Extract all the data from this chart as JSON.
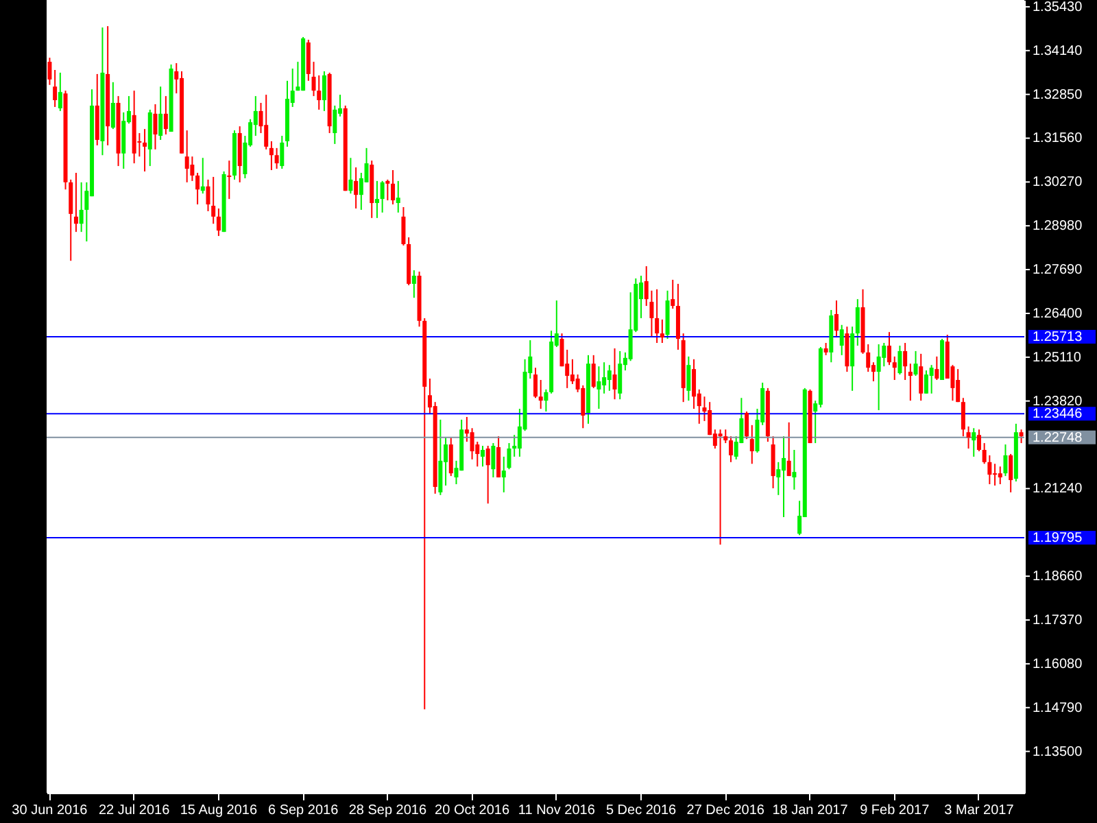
{
  "chart_data": {
    "type": "candlestick",
    "categories": [
      "30 Jun 2016",
      null,
      null,
      null,
      null,
      null,
      null,
      null,
      null,
      null,
      null,
      null,
      null,
      null,
      null,
      null,
      "22 Jul 2016",
      null,
      null,
      null,
      null,
      null,
      null,
      null,
      null,
      null,
      null,
      null,
      null,
      null,
      null,
      null,
      "15 Aug 2016",
      null,
      null,
      null,
      null,
      null,
      null,
      null,
      null,
      null,
      null,
      null,
      null,
      null,
      null,
      null,
      "6 Sep 2016",
      null,
      null,
      null,
      null,
      null,
      null,
      null,
      null,
      null,
      null,
      null,
      null,
      null,
      null,
      null,
      "28 Sep 2016",
      null,
      null,
      null,
      null,
      null,
      null,
      null,
      null,
      null,
      null,
      null,
      null,
      null,
      null,
      null,
      "20 Oct 2016",
      null,
      null,
      null,
      null,
      null,
      null,
      null,
      null,
      null,
      null,
      null,
      null,
      null,
      null,
      null,
      "11 Nov 2016",
      null,
      null,
      null,
      null,
      null,
      null,
      null,
      null,
      null,
      null,
      null,
      null,
      null,
      null,
      null,
      "5 Dec 2016",
      null,
      null,
      null,
      null,
      null,
      null,
      null,
      null,
      null,
      null,
      null,
      null,
      null,
      null,
      null,
      "27 Dec 2016",
      null,
      null,
      null,
      null,
      null,
      null,
      null,
      null,
      null,
      null,
      null,
      null,
      null,
      null,
      null,
      "18 Jan 2017",
      null,
      null,
      null,
      null,
      null,
      null,
      null,
      null,
      null,
      null,
      null,
      null,
      null,
      null,
      null,
      "9 Feb 2017",
      null,
      null,
      null,
      null,
      null,
      null,
      null,
      null,
      null,
      null,
      null,
      null,
      null,
      null,
      null,
      "3 Mar 2017",
      null,
      null,
      null,
      null,
      null,
      null,
      null,
      null
    ],
    "ohlc": [
      [
        1.3381,
        1.3393,
        1.3313,
        1.3329
      ],
      [
        1.3308,
        1.3357,
        1.3248,
        1.3268
      ],
      [
        1.3244,
        1.3349,
        1.3236,
        1.3292
      ],
      [
        1.3288,
        1.3296,
        1.3005,
        1.3026
      ],
      [
        1.3026,
        1.3034,
        1.2795,
        1.2933
      ],
      [
        1.2925,
        1.3054,
        1.288,
        1.2904
      ],
      [
        1.2904,
        1.3026,
        1.288,
        1.2945
      ],
      [
        1.2945,
        1.3026,
        1.2852,
        1.3001
      ],
      [
        1.2985,
        1.33,
        1.2985,
        1.3252
      ],
      [
        1.3252,
        1.3345,
        1.3135,
        1.3151
      ],
      [
        1.3147,
        1.3482,
        1.3106,
        1.3349
      ],
      [
        1.3345,
        1.3486,
        1.3135,
        1.3191
      ],
      [
        1.3187,
        1.3321,
        1.3183,
        1.326
      ],
      [
        1.326,
        1.328,
        1.3074,
        1.3111
      ],
      [
        1.3111,
        1.3232,
        1.3066,
        1.3207
      ],
      [
        1.3203,
        1.328,
        1.3199,
        1.3236
      ],
      [
        1.3224,
        1.3296,
        1.3082,
        1.3111
      ],
      [
        1.3147,
        1.3171,
        1.3102,
        1.3143
      ],
      [
        1.3143,
        1.3183,
        1.3058,
        1.3131
      ],
      [
        1.3123,
        1.324,
        1.3074,
        1.3232
      ],
      [
        1.3228,
        1.3256,
        1.3123,
        1.3167
      ],
      [
        1.3163,
        1.3308,
        1.3151,
        1.3228
      ],
      [
        1.3228,
        1.328,
        1.3167,
        1.3183
      ],
      [
        1.3175,
        1.3373,
        1.3175,
        1.3361
      ],
      [
        1.3353,
        1.3377,
        1.3288,
        1.3329
      ],
      [
        1.3333,
        1.3353,
        1.3111,
        1.3111
      ],
      [
        1.3102,
        1.3179,
        1.3026,
        1.3066
      ],
      [
        1.3078,
        1.3102,
        1.303,
        1.3046
      ],
      [
        1.3046,
        1.3054,
        1.2961,
        1.3005
      ],
      [
        1.3001,
        1.3098,
        1.2993,
        1.3014
      ],
      [
        1.3014,
        1.3034,
        1.2941,
        1.2961
      ],
      [
        1.2957,
        1.3042,
        1.2904,
        1.2925
      ],
      [
        1.2925,
        1.2949,
        1.2868,
        1.2884
      ],
      [
        1.288,
        1.3058,
        1.288,
        1.305
      ],
      [
        1.3046,
        1.309,
        1.2977,
        1.3042
      ],
      [
        1.3046,
        1.3179,
        1.3034,
        1.3171
      ],
      [
        1.3171,
        1.3191,
        1.3026,
        1.3074
      ],
      [
        1.305,
        1.3163,
        1.3038,
        1.3143
      ],
      [
        1.3135,
        1.3212,
        1.3131,
        1.3203
      ],
      [
        1.3195,
        1.328,
        1.3163,
        1.3236
      ],
      [
        1.3236,
        1.326,
        1.3171,
        1.3191
      ],
      [
        1.3195,
        1.3284,
        1.3123,
        1.3131
      ],
      [
        1.3127,
        1.3147,
        1.3062,
        1.3106
      ],
      [
        1.3106,
        1.3127,
        1.3066,
        1.3082
      ],
      [
        1.3074,
        1.3163,
        1.3066,
        1.3143
      ],
      [
        1.3147,
        1.3325,
        1.3131,
        1.3272
      ],
      [
        1.326,
        1.3361,
        1.3248,
        1.3296
      ],
      [
        1.3296,
        1.3381,
        1.3296,
        1.3308
      ],
      [
        1.3296,
        1.3454,
        1.3296,
        1.345
      ],
      [
        1.3438,
        1.3446,
        1.3325,
        1.3345
      ],
      [
        1.3337,
        1.3381,
        1.328,
        1.3296
      ],
      [
        1.3296,
        1.3341,
        1.324,
        1.3268
      ],
      [
        1.3268,
        1.3353,
        1.3236,
        1.3341
      ],
      [
        1.3345,
        1.3349,
        1.3171,
        1.3191
      ],
      [
        1.3171,
        1.3252,
        1.3139,
        1.324
      ],
      [
        1.3228,
        1.3284,
        1.322,
        1.3244
      ],
      [
        1.3244,
        1.3252,
        1.3001,
        1.3001
      ],
      [
        1.3001,
        1.3098,
        1.2993,
        1.3034
      ],
      [
        1.303,
        1.307,
        1.2949,
        1.2989
      ],
      [
        1.2989,
        1.3054,
        1.2945,
        1.3038
      ],
      [
        1.3026,
        1.3127,
        1.3026,
        1.3082
      ],
      [
        1.3078,
        1.309,
        1.2921,
        1.2965
      ],
      [
        1.2965,
        1.303,
        1.2921,
        1.2977
      ],
      [
        1.2977,
        1.303,
        1.2937,
        1.3026
      ],
      [
        1.303,
        1.3034,
        1.2973,
        1.3022
      ],
      [
        1.3022,
        1.3062,
        1.2961,
        1.2973
      ],
      [
        1.2965,
        1.303,
        1.2937,
        1.2981
      ],
      [
        1.2925,
        1.2953,
        1.284,
        1.2844
      ],
      [
        1.2844,
        1.2864,
        1.2723,
        1.2727
      ],
      [
        1.2727,
        1.2767,
        1.2686,
        1.2751
      ],
      [
        1.2751,
        1.2763,
        1.2601,
        1.2618
      ],
      [
        1.2618,
        1.2626,
        1.1474,
        1.2424
      ],
      [
        1.2399,
        1.2448,
        1.2343,
        1.2363
      ],
      [
        1.2367,
        1.2379,
        1.2109,
        1.2129
      ],
      [
        1.2113,
        1.2327,
        1.2105,
        1.2206
      ],
      [
        1.2202,
        1.2274,
        1.2133,
        1.2254
      ],
      [
        1.2254,
        1.2274,
        1.2161,
        1.2169
      ],
      [
        1.2157,
        1.2206,
        1.2137,
        1.2185
      ],
      [
        1.2177,
        1.2327,
        1.2177,
        1.2298
      ],
      [
        1.2298,
        1.2335,
        1.2262,
        1.2286
      ],
      [
        1.229,
        1.2302,
        1.221,
        1.2234
      ],
      [
        1.2254,
        1.2262,
        1.2189,
        1.2226
      ],
      [
        1.2218,
        1.225,
        1.2189,
        1.2238
      ],
      [
        1.2242,
        1.225,
        1.208,
        1.2193
      ],
      [
        1.2181,
        1.2258,
        1.2157,
        1.225
      ],
      [
        1.2246,
        1.2278,
        1.2157,
        1.2157
      ],
      [
        1.2157,
        1.2218,
        1.2113,
        1.2177
      ],
      [
        1.2185,
        1.2258,
        1.2181,
        1.2242
      ],
      [
        1.2242,
        1.2282,
        1.2218,
        1.225
      ],
      [
        1.2242,
        1.2359,
        1.2218,
        1.2307
      ],
      [
        1.2298,
        1.2505,
        1.2294,
        1.2468
      ],
      [
        1.2464,
        1.2561,
        1.2448,
        1.2513
      ],
      [
        1.246,
        1.248,
        1.2391,
        1.2395
      ],
      [
        1.2395,
        1.2444,
        1.2359,
        1.2383
      ],
      [
        1.2383,
        1.2416,
        1.2351,
        1.2408
      ],
      [
        1.2408,
        1.2589,
        1.2404,
        1.2557
      ],
      [
        1.2545,
        1.2678,
        1.2541,
        1.2581
      ],
      [
        1.2565,
        1.2581,
        1.2484,
        1.2484
      ],
      [
        1.2492,
        1.2533,
        1.242,
        1.2456
      ],
      [
        1.246,
        1.2505,
        1.2432,
        1.244
      ],
      [
        1.2448,
        1.246,
        1.2408,
        1.2416
      ],
      [
        1.242,
        1.2428,
        1.2302,
        1.2339
      ],
      [
        1.2347,
        1.2517,
        1.2315,
        1.2492
      ],
      [
        1.2492,
        1.2517,
        1.242,
        1.2424
      ],
      [
        1.2416,
        1.2484,
        1.2359,
        1.244
      ],
      [
        1.2428,
        1.2496,
        1.2404,
        1.2452
      ],
      [
        1.2444,
        1.2488,
        1.2412,
        1.2472
      ],
      [
        1.246,
        1.2537,
        1.2387,
        1.2416
      ],
      [
        1.2404,
        1.2529,
        1.2387,
        1.2492
      ],
      [
        1.2488,
        1.2525,
        1.2472,
        1.2509
      ],
      [
        1.2505,
        1.2702,
        1.25,
        1.2593
      ],
      [
        1.2589,
        1.2743,
        1.2585,
        1.2727
      ],
      [
        1.2682,
        1.2751,
        1.2626,
        1.2731
      ],
      [
        1.2735,
        1.2779,
        1.2662,
        1.2682
      ],
      [
        1.2674,
        1.2707,
        1.2573,
        1.2626
      ],
      [
        1.2626,
        1.2711,
        1.2553,
        1.2581
      ],
      [
        1.2581,
        1.2622,
        1.2553,
        1.2569
      ],
      [
        1.2577,
        1.2707,
        1.2565,
        1.2678
      ],
      [
        1.2682,
        1.2739,
        1.2654,
        1.2662
      ],
      [
        1.2662,
        1.2727,
        1.2533,
        1.2565
      ],
      [
        1.2561,
        1.2581,
        1.2379,
        1.242
      ],
      [
        1.2412,
        1.2513,
        1.2383,
        1.2488
      ],
      [
        1.2476,
        1.2505,
        1.2359,
        1.2395
      ],
      [
        1.2404,
        1.2416,
        1.2315,
        1.2367
      ],
      [
        1.2363,
        1.2395,
        1.2323,
        1.2351
      ],
      [
        1.2355,
        1.2379,
        1.2282,
        1.2282
      ],
      [
        1.2286,
        1.2298,
        1.2242,
        1.225
      ],
      [
        1.2286,
        1.2298,
        1.1959,
        1.2278
      ],
      [
        1.2278,
        1.2298,
        1.2258,
        1.2266
      ],
      [
        1.2266,
        1.2278,
        1.2202,
        1.2222
      ],
      [
        1.2218,
        1.2278,
        1.221,
        1.2262
      ],
      [
        1.2258,
        1.2391,
        1.2258,
        1.2331
      ],
      [
        1.2347,
        1.2351,
        1.227,
        1.2278
      ],
      [
        1.227,
        1.2311,
        1.2197,
        1.2234
      ],
      [
        1.2234,
        1.2359,
        1.223,
        1.2327
      ],
      [
        1.2319,
        1.2436,
        1.2311,
        1.242
      ],
      [
        1.2412,
        1.242,
        1.2262,
        1.2278
      ],
      [
        1.2254,
        1.2278,
        1.2125,
        1.2161
      ],
      [
        1.2157,
        1.2202,
        1.2105,
        1.2181
      ],
      [
        1.2177,
        1.2278,
        1.204,
        1.2214
      ],
      [
        1.2206,
        1.2319,
        1.2161,
        1.2161
      ],
      [
        1.2157,
        1.2238,
        1.2121,
        1.2173
      ],
      [
        1.1991,
        1.2088,
        1.1987,
        1.2044
      ],
      [
        1.204,
        1.242,
        1.204,
        1.2416
      ],
      [
        1.2412,
        1.2416,
        1.2258,
        1.2258
      ],
      [
        1.2351,
        1.2383,
        1.2258,
        1.2375
      ],
      [
        1.2371,
        1.2541,
        1.2363,
        1.2537
      ],
      [
        1.2537,
        1.2553,
        1.2517,
        1.2525
      ],
      [
        1.2525,
        1.265,
        1.2496,
        1.2634
      ],
      [
        1.2638,
        1.2678,
        1.2573,
        1.2589
      ],
      [
        1.2545,
        1.2606,
        1.2517,
        1.2593
      ],
      [
        1.2581,
        1.2601,
        1.2468,
        1.2484
      ],
      [
        1.2484,
        1.2601,
        1.2412,
        1.2581
      ],
      [
        1.2581,
        1.2682,
        1.2545,
        1.2658
      ],
      [
        1.2658,
        1.2711,
        1.2521,
        1.2525
      ],
      [
        1.2525,
        1.2549,
        1.2468,
        1.248
      ],
      [
        1.2488,
        1.2496,
        1.244,
        1.2468
      ],
      [
        1.2468,
        1.2549,
        1.2355,
        1.2513
      ],
      [
        1.2509,
        1.2553,
        1.2484,
        1.2545
      ],
      [
        1.2545,
        1.2585,
        1.2488,
        1.2496
      ],
      [
        1.2496,
        1.2513,
        1.2444,
        1.248
      ],
      [
        1.2464,
        1.2545,
        1.246,
        1.2529
      ],
      [
        1.2529,
        1.2553,
        1.2444,
        1.2484
      ],
      [
        1.2468,
        1.2492,
        1.2383,
        1.2456
      ],
      [
        1.246,
        1.2529,
        1.2456,
        1.2492
      ],
      [
        1.2484,
        1.2521,
        1.2383,
        1.2404
      ],
      [
        1.2404,
        1.2472,
        1.2404,
        1.246
      ],
      [
        1.2456,
        1.2488,
        1.2404,
        1.248
      ],
      [
        1.2476,
        1.2513,
        1.2444,
        1.2448
      ],
      [
        1.2444,
        1.2565,
        1.2444,
        1.2561
      ],
      [
        1.2557,
        1.2577,
        1.2448,
        1.2448
      ],
      [
        1.2484,
        1.2488,
        1.2383,
        1.242
      ],
      [
        1.2444,
        1.2476,
        1.2379,
        1.2379
      ],
      [
        1.2379,
        1.2391,
        1.2278,
        1.2298
      ],
      [
        1.229,
        1.2307,
        1.2242,
        1.2274
      ],
      [
        1.2266,
        1.2302,
        1.2218,
        1.229
      ],
      [
        1.2282,
        1.2298,
        1.2234,
        1.2238
      ],
      [
        1.2238,
        1.2258,
        1.2197,
        1.2202
      ],
      [
        1.2202,
        1.2222,
        1.2137,
        1.2165
      ],
      [
        1.2169,
        1.2197,
        1.2133,
        1.2165
      ],
      [
        1.2169,
        1.2189,
        1.2137,
        1.2157
      ],
      [
        1.2169,
        1.2254,
        1.2161,
        1.2222
      ],
      [
        1.2222,
        1.2226,
        1.2113,
        1.2149
      ],
      [
        1.2153,
        1.2315,
        1.2145,
        1.229
      ],
      [
        1.229,
        1.2298,
        1.2258,
        1.2278
      ]
    ],
    "colors": [
      "#ff0000",
      "#ff0000",
      "#00ee00",
      "#ff0000",
      "#ff0000",
      "#ff0000",
      "#00ee00",
      "#00ee00",
      "#00ee00",
      "#ff0000",
      "#00ee00",
      "#ff0000",
      "#00ee00",
      "#ff0000",
      "#00ee00",
      "#00ee00",
      "#ff0000",
      "#ff0000",
      "#ff0000",
      "#00ee00",
      "#ff0000",
      "#00ee00",
      "#ff0000",
      "#00ee00",
      "#ff0000",
      "#ff0000",
      "#ff0000",
      "#ff0000",
      "#ff0000",
      "#00ee00",
      "#ff0000",
      "#ff0000",
      "#ff0000",
      "#00ee00",
      "#ff0000",
      "#00ee00",
      "#ff0000",
      "#00ee00",
      "#00ee00",
      "#00ee00",
      "#ff0000",
      "#ff0000",
      "#ff0000",
      "#ff0000",
      "#00ee00",
      "#00ee00",
      "#00ee00",
      "#00ee00",
      "#00ee00",
      "#ff0000",
      "#ff0000",
      "#ff0000",
      "#00ee00",
      "#ff0000",
      "#00ee00",
      "#00ee00",
      "#ff0000",
      "#00ee00",
      "#ff0000",
      "#00ee00",
      "#00ee00",
      "#ff0000",
      "#00ee00",
      "#00ee00",
      "#ff0000",
      "#ff0000",
      "#00ee00",
      "#ff0000",
      "#ff0000",
      "#00ee00",
      "#ff0000",
      "#ff0000",
      "#ff0000",
      "#ff0000",
      "#00ee00",
      "#00ee00",
      "#ff0000",
      "#00ee00",
      "#00ee00",
      "#ff0000",
      "#ff0000",
      "#ff0000",
      "#00ee00",
      "#ff0000",
      "#00ee00",
      "#ff0000",
      "#00ee00",
      "#00ee00",
      "#00ee00",
      "#00ee00",
      "#00ee00",
      "#00ee00",
      "#ff0000",
      "#ff0000",
      "#00ee00",
      "#00ee00",
      "#00ee00",
      "#ff0000",
      "#ff0000",
      "#ff0000",
      "#ff0000",
      "#ff0000",
      "#00ee00",
      "#ff0000",
      "#00ee00",
      "#00ee00",
      "#00ee00",
      "#ff0000",
      "#00ee00",
      "#00ee00",
      "#00ee00",
      "#00ee00",
      "#00ee00",
      "#ff0000",
      "#ff0000",
      "#ff0000",
      "#ff0000",
      "#00ee00",
      "#ff0000",
      "#ff0000",
      "#ff0000",
      "#00ee00",
      "#ff0000",
      "#ff0000",
      "#ff0000",
      "#ff0000",
      "#ff0000",
      "#ff0000",
      "#ff0000",
      "#ff0000",
      "#00ee00",
      "#00ee00",
      "#ff0000",
      "#ff0000",
      "#00ee00",
      "#00ee00",
      "#ff0000",
      "#ff0000",
      "#00ee00",
      "#00ee00",
      "#ff0000",
      "#00ee00",
      "#00ee00",
      "#00ee00",
      "#ff0000",
      "#00ee00",
      "#00ee00",
      "#ff0000",
      "#00ee00",
      "#ff0000",
      "#00ee00",
      "#ff0000",
      "#00ee00",
      "#00ee00",
      "#ff0000",
      "#ff0000",
      "#ff0000",
      "#00ee00",
      "#00ee00",
      "#ff0000",
      "#ff0000",
      "#00ee00",
      "#ff0000",
      "#ff0000",
      "#00ee00",
      "#ff0000",
      "#00ee00",
      "#00ee00",
      "#ff0000",
      "#00ee00",
      "#ff0000",
      "#ff0000",
      "#ff0000",
      "#ff0000",
      "#ff0000",
      "#00ee00",
      "#ff0000",
      "#ff0000",
      "#ff0000",
      "#ff0000",
      "#ff0000",
      "#00ee00",
      "#ff0000",
      "#00ee00",
      "#ff0000"
    ],
    "ylim": [
      1.1228,
      1.3563
    ],
    "yticks": [
      {
        "value": 1.3543,
        "label": "1.35430"
      },
      {
        "value": 1.3414,
        "label": "1.34140"
      },
      {
        "value": 1.3285,
        "label": "1.32850"
      },
      {
        "value": 1.3156,
        "label": "1.31560"
      },
      {
        "value": 1.3027,
        "label": "1.30270"
      },
      {
        "value": 1.2898,
        "label": "1.28980"
      },
      {
        "value": 1.2769,
        "label": "1.27690"
      },
      {
        "value": 1.264,
        "label": "1.26400"
      },
      {
        "value": 1.2511,
        "label": "1.25110"
      },
      {
        "value": 1.2382,
        "label": "1.23820"
      },
      {
        "value": 1.2124,
        "label": "1.21240"
      },
      {
        "value": 1.1866,
        "label": "1.18660"
      },
      {
        "value": 1.1737,
        "label": "1.17370"
      },
      {
        "value": 1.1608,
        "label": "1.16080"
      },
      {
        "value": 1.1479,
        "label": "1.14790"
      },
      {
        "value": 1.135,
        "label": "1.13500"
      }
    ],
    "ref_lines": [
      {
        "axis": "y",
        "value": 1.25713,
        "label": "1.25713",
        "color": "#0000ff"
      },
      {
        "axis": "y",
        "value": 1.23446,
        "label": "1.23446",
        "color": "#0000ff"
      },
      {
        "axis": "y",
        "value": 1.19795,
        "label": "1.19795",
        "color": "#0000ff"
      },
      {
        "axis": "y",
        "value": 1.22748,
        "label": "1.22748",
        "color": "#8090a0"
      }
    ]
  }
}
